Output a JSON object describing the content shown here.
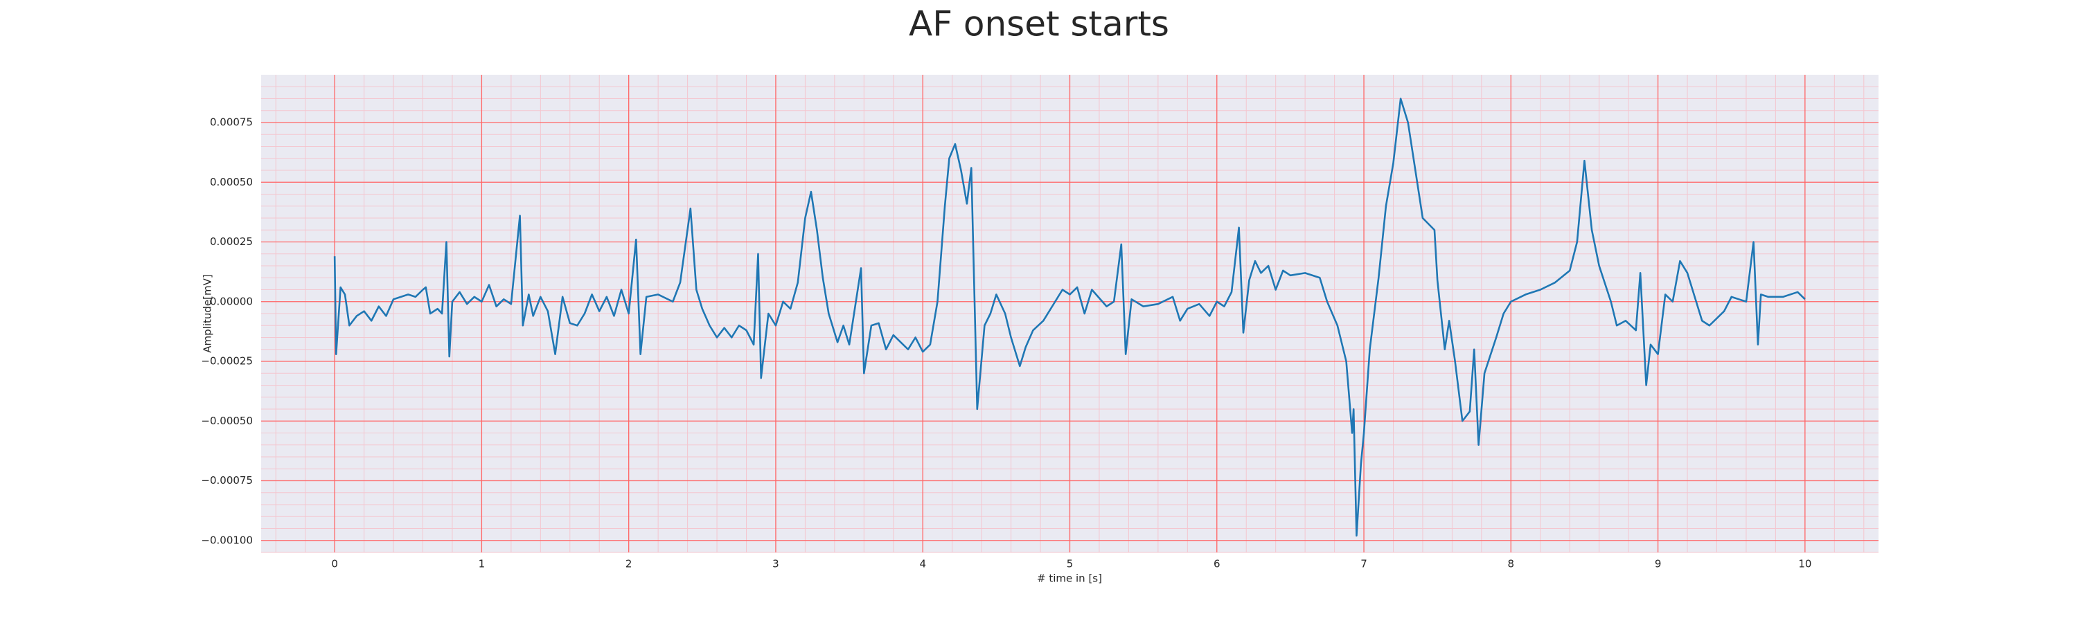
{
  "chart_data": {
    "type": "line",
    "title": "AF onset starts",
    "xlabel": "# time in [s]",
    "ylabel": "Amplitude[mV]",
    "series": [
      {
        "color": "#1f77b4",
        "x": [
          0,
          0.01,
          0.04,
          0.07,
          0.1,
          0.15,
          0.2,
          0.25,
          0.3,
          0.35,
          0.4,
          0.45,
          0.5,
          0.55,
          0.6,
          0.62,
          0.65,
          0.7,
          0.73,
          0.76,
          0.78,
          0.8,
          0.85,
          0.9,
          0.95,
          1.0,
          1.05,
          1.1,
          1.15,
          1.2,
          1.26,
          1.28,
          1.32,
          1.35,
          1.4,
          1.45,
          1.5,
          1.55,
          1.6,
          1.65,
          1.7,
          1.75,
          1.8,
          1.85,
          1.9,
          1.95,
          2.0,
          2.05,
          2.08,
          2.12,
          2.2,
          2.3,
          2.35,
          2.42,
          2.46,
          2.5,
          2.55,
          2.6,
          2.65,
          2.7,
          2.75,
          2.8,
          2.85,
          2.88,
          2.9,
          2.95,
          3.0,
          3.05,
          3.1,
          3.15,
          3.2,
          3.24,
          3.28,
          3.32,
          3.36,
          3.42,
          3.46,
          3.5,
          3.58,
          3.6,
          3.65,
          3.7,
          3.75,
          3.8,
          3.85,
          3.9,
          3.95,
          4.0,
          4.05,
          4.1,
          4.15,
          4.18,
          4.22,
          4.26,
          4.3,
          4.33,
          4.37,
          4.42,
          4.46,
          4.5,
          4.56,
          4.6,
          4.66,
          4.7,
          4.75,
          4.82,
          4.9,
          4.95,
          5.0,
          5.05,
          5.1,
          5.15,
          5.25,
          5.3,
          5.35,
          5.38,
          5.42,
          5.5,
          5.6,
          5.7,
          5.75,
          5.8,
          5.88,
          5.95,
          6.0,
          6.05,
          6.1,
          6.15,
          6.18,
          6.22,
          6.26,
          6.3,
          6.35,
          6.4,
          6.45,
          6.5,
          6.6,
          6.7,
          6.75,
          6.82,
          6.88,
          6.92,
          6.93,
          6.95,
          6.98,
          7.0,
          7.04,
          7.1,
          7.15,
          7.2,
          7.25,
          7.3,
          7.35,
          7.4,
          7.48,
          7.5,
          7.55,
          7.58,
          7.62,
          7.67,
          7.72,
          7.75,
          7.78,
          7.82,
          7.9,
          7.95,
          8.0,
          8.1,
          8.2,
          8.3,
          8.4,
          8.45,
          8.5,
          8.55,
          8.6,
          8.68,
          8.72,
          8.78,
          8.85,
          8.88,
          8.92,
          8.95,
          9.0,
          9.05,
          9.1,
          9.15,
          9.2,
          9.25,
          9.3,
          9.35,
          9.45,
          9.5,
          9.55,
          9.6,
          9.65,
          9.68,
          9.7,
          9.75,
          9.85,
          9.95,
          10.0
        ],
        "values": [
          0.00019,
          -0.00022,
          6e-05,
          3e-05,
          -0.0001,
          -6e-05,
          -4e-05,
          -8e-05,
          -2e-05,
          -6e-05,
          1e-05,
          2e-05,
          3e-05,
          2e-05,
          5e-05,
          6e-05,
          -5e-05,
          -3e-05,
          -5e-05,
          0.00025,
          -0.00023,
          0.0,
          4e-05,
          -1e-05,
          2e-05,
          0.0,
          7e-05,
          -2e-05,
          1e-05,
          -1e-05,
          0.00036,
          -0.0001,
          3e-05,
          -6e-05,
          2e-05,
          -4e-05,
          -0.00022,
          2e-05,
          -9e-05,
          -0.0001,
          -5e-05,
          3e-05,
          -4e-05,
          2e-05,
          -6e-05,
          5e-05,
          -5e-05,
          0.00026,
          -0.00022,
          2e-05,
          3e-05,
          0.0,
          8e-05,
          0.00039,
          5e-05,
          -3e-05,
          -0.0001,
          -0.00015,
          -0.00011,
          -0.00015,
          -0.0001,
          -0.00012,
          -0.00018,
          0.0002,
          -0.00032,
          -5e-05,
          -0.0001,
          0.0,
          -3e-05,
          8e-05,
          0.00035,
          0.00046,
          0.0003,
          0.0001,
          -5e-05,
          -0.00017,
          -0.0001,
          -0.00018,
          0.00014,
          -0.0003,
          -0.0001,
          -9e-05,
          -0.0002,
          -0.00014,
          -0.00017,
          -0.0002,
          -0.00015,
          -0.00021,
          -0.00018,
          0.0,
          0.0004,
          0.0006,
          0.00066,
          0.00055,
          0.00041,
          0.00056,
          -0.00045,
          -0.0001,
          -5e-05,
          3e-05,
          -5e-05,
          -0.00015,
          -0.00027,
          -0.00019,
          -0.00012,
          -8e-05,
          0.0,
          5e-05,
          3e-05,
          6e-05,
          -5e-05,
          5e-05,
          -2e-05,
          0.0,
          0.00024,
          -0.00022,
          1e-05,
          -2e-05,
          -1e-05,
          2e-05,
          -8e-05,
          -3e-05,
          -1e-05,
          -6e-05,
          0.0,
          -2e-05,
          4e-05,
          0.00031,
          -0.00013,
          9e-05,
          0.00017,
          0.00012,
          0.00015,
          5e-05,
          0.00013,
          0.00011,
          0.00012,
          0.0001,
          0.0,
          -0.0001,
          -0.00025,
          -0.00055,
          -0.00045,
          -0.00098,
          -0.00068,
          -0.00055,
          -0.0002,
          0.0001,
          0.0004,
          0.00058,
          0.00085,
          0.00075,
          0.00055,
          0.00035,
          0.0003,
          9e-05,
          -0.0002,
          -8e-05,
          -0.00025,
          -0.0005,
          -0.00046,
          -0.0002,
          -0.0006,
          -0.0003,
          -0.00015,
          -5e-05,
          0.0,
          3e-05,
          5e-05,
          8e-05,
          0.00013,
          0.00025,
          0.00059,
          0.0003,
          0.00015,
          0.0,
          -0.0001,
          -8e-05,
          -0.00012,
          0.00012,
          -0.00035,
          -0.00018,
          -0.00022,
          3e-05,
          0.0,
          0.00017,
          0.00012,
          2e-05,
          -8e-05,
          -0.0001,
          -4e-05,
          2e-05,
          1e-05,
          0.0,
          0.00025,
          -0.00018,
          3e-05,
          2e-05,
          2e-05,
          4e-05,
          1e-05
        ]
      }
    ],
    "xlim": [
      -0.5,
      10.5
    ],
    "xticks": [
      0,
      1,
      2,
      3,
      4,
      5,
      6,
      7,
      8,
      9,
      10
    ],
    "ylim": [
      -0.00105,
      0.00095
    ],
    "yticks": [
      {
        "value": -0.001,
        "label": "−0.00100"
      },
      {
        "value": -0.00075,
        "label": "−0.00075"
      },
      {
        "value": -0.0005,
        "label": "−0.00050"
      },
      {
        "value": -0.00025,
        "label": "−0.00025"
      },
      {
        "value": 0,
        "label": "0.00000"
      },
      {
        "value": 0.00025,
        "label": "0.00025"
      },
      {
        "value": 0.0005,
        "label": "0.00050"
      },
      {
        "value": 0.00075,
        "label": "0.00075"
      }
    ],
    "grid": true,
    "grid_color": "#ff6666",
    "minor_grid_color": "#f4c6cf",
    "minor_divisions": 5,
    "background": "#eaeaf2"
  }
}
